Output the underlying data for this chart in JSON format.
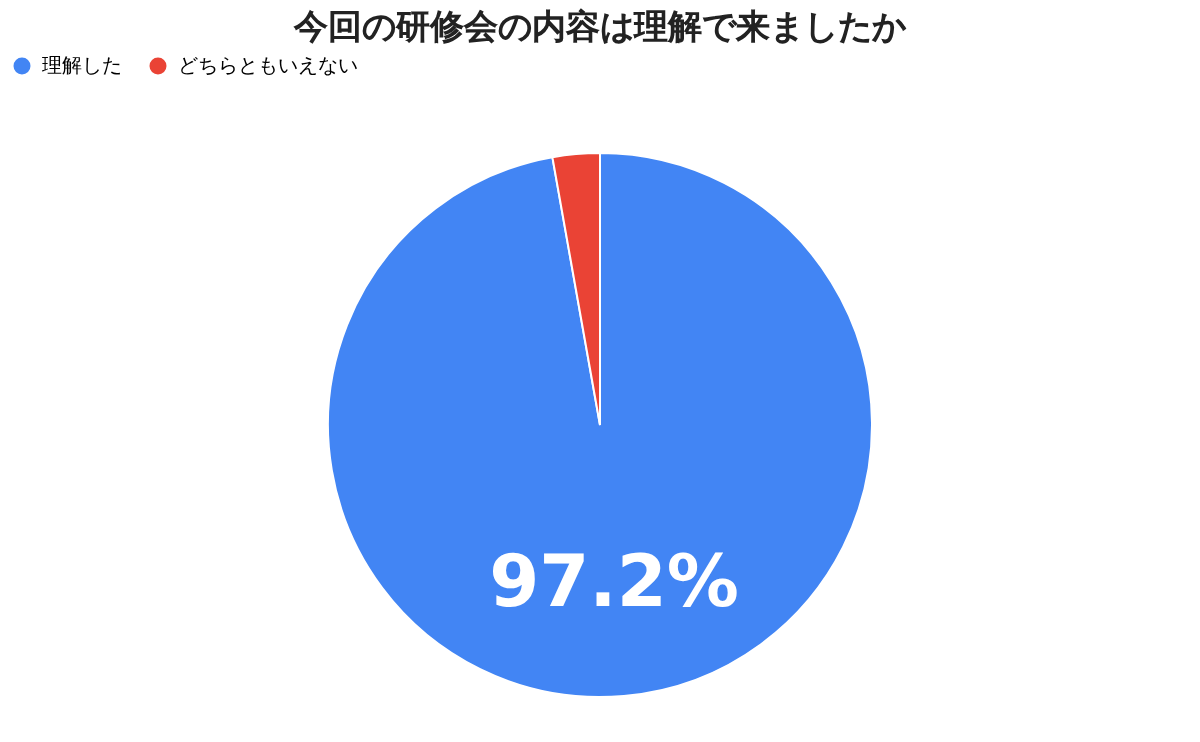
{
  "chart_data": {
    "type": "pie",
    "title": "今回の研修会の内容は理解で来ましたか",
    "categories": [
      "理解した",
      "どちらともいえない"
    ],
    "values": [
      97.2,
      2.8
    ],
    "colors": [
      "#4285f4",
      "#ea4335"
    ],
    "value_labels": [
      "97.2%",
      null
    ],
    "legend": "top"
  }
}
